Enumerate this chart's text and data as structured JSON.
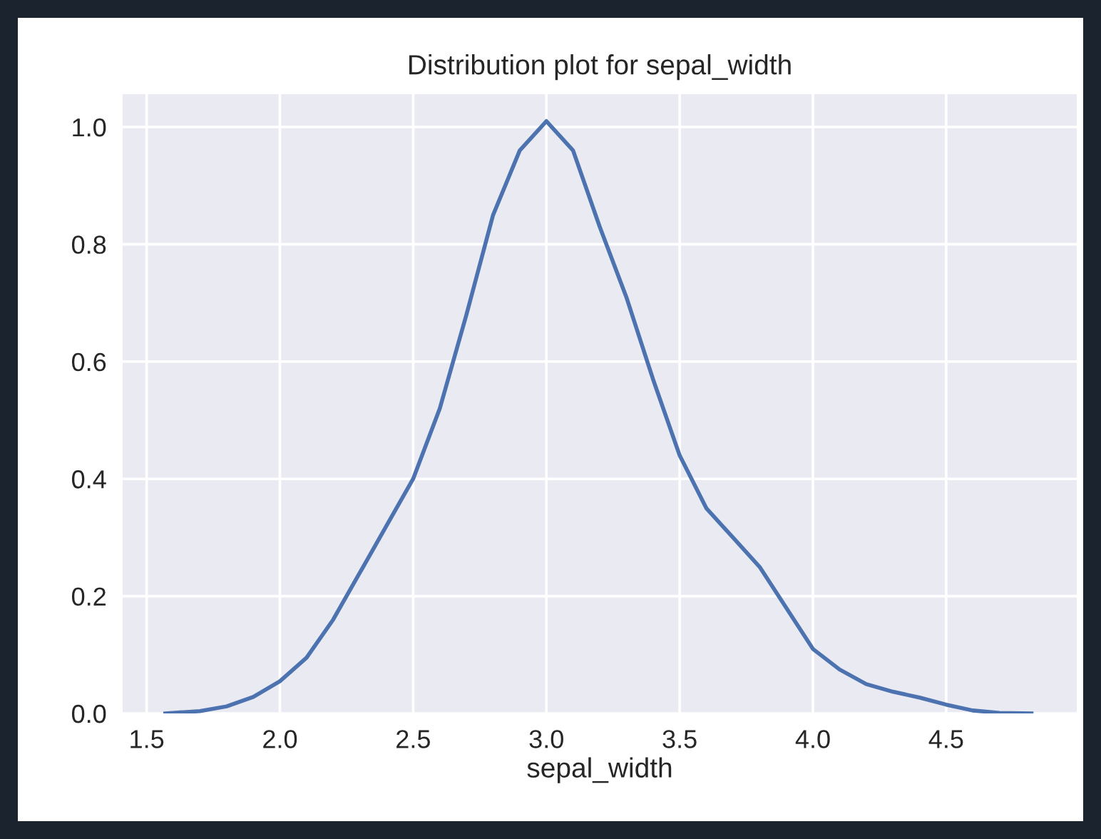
{
  "chart_data": {
    "type": "line",
    "title": "Distribution plot for sepal_width",
    "xlabel": "sepal_width",
    "x": [
      1.57,
      1.7,
      1.8,
      1.9,
      2.0,
      2.1,
      2.2,
      2.3,
      2.4,
      2.5,
      2.6,
      2.7,
      2.8,
      2.9,
      3.0,
      3.1,
      3.2,
      3.3,
      3.4,
      3.5,
      3.6,
      3.7,
      3.8,
      3.9,
      4.0,
      4.1,
      4.2,
      4.3,
      4.4,
      4.5,
      4.6,
      4.7,
      4.82
    ],
    "series": [
      {
        "color": "#4c72b0",
        "values": [
          0.0,
          0.004,
          0.012,
          0.028,
          0.055,
          0.095,
          0.16,
          0.24,
          0.32,
          0.4,
          0.52,
          0.68,
          0.85,
          0.96,
          1.01,
          0.96,
          0.83,
          0.71,
          0.57,
          0.44,
          0.35,
          0.3,
          0.25,
          0.18,
          0.11,
          0.075,
          0.05,
          0.037,
          0.027,
          0.015,
          0.005,
          0.001,
          0.0
        ]
      }
    ],
    "xlim": [
      1.41,
      4.99
    ],
    "ylim": [
      0,
      1.056
    ],
    "xticks": [
      1.5,
      {
        "value": 2,
        "label": "2.0"
      },
      2.5,
      {
        "value": 3,
        "label": "3.0"
      },
      3.5,
      {
        "value": 4,
        "label": "4.0"
      },
      4.5
    ],
    "yticks": [
      {
        "value": 0,
        "label": "0.0"
      },
      0.2,
      0.4,
      0.6,
      0.8,
      {
        "value": 1,
        "label": "1.0"
      }
    ],
    "grid": true,
    "marker": "none",
    "line_style": "solid"
  }
}
